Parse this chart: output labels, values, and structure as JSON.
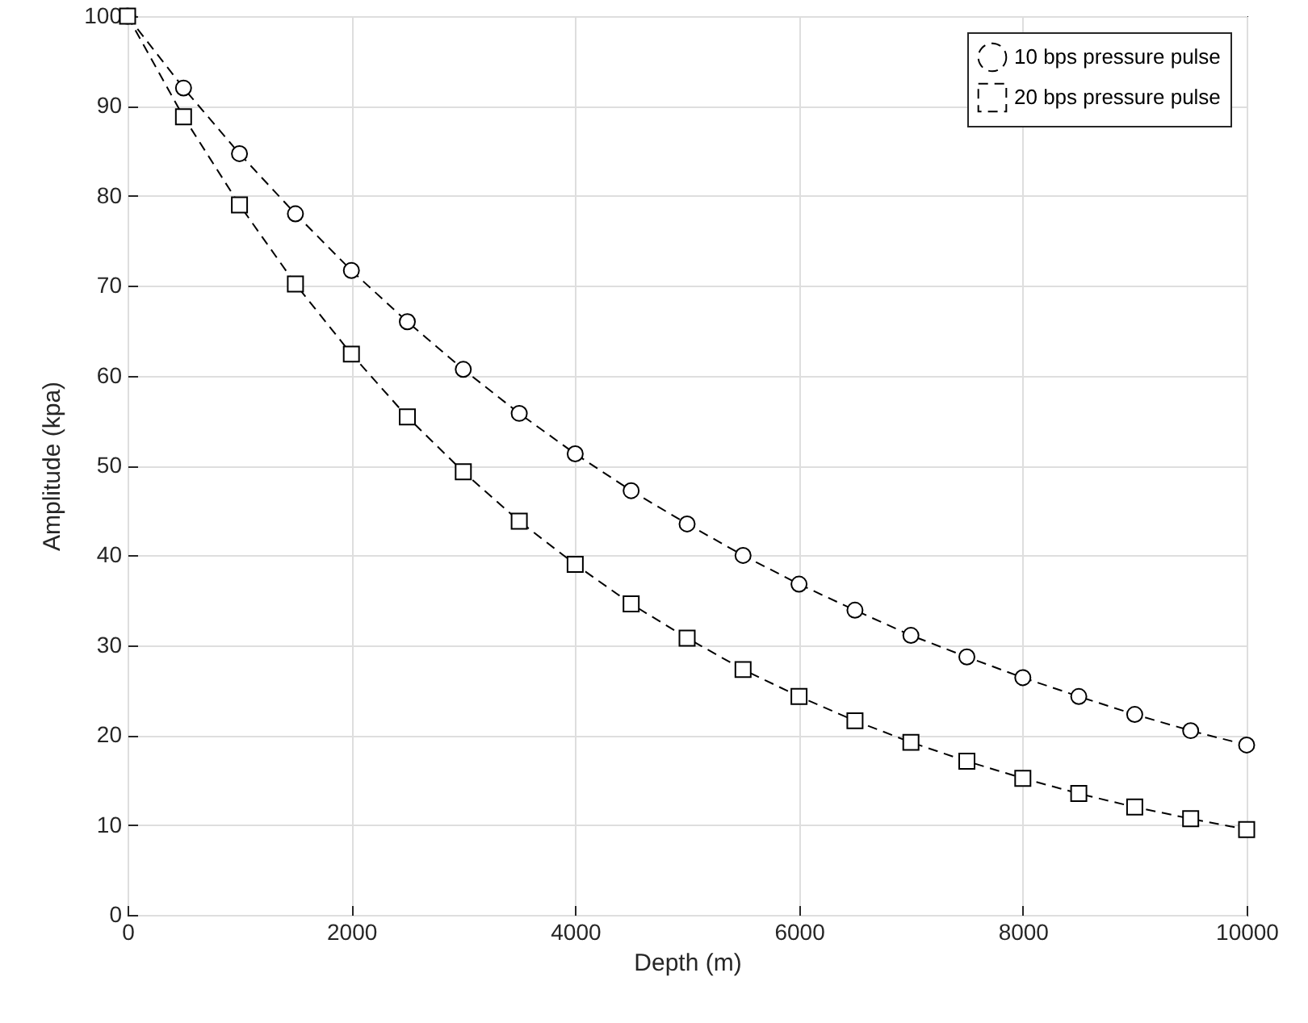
{
  "chart_data": {
    "type": "line",
    "xlabel": "Depth (m)",
    "ylabel": "Amplitude (kpa)",
    "x": [
      0,
      500,
      1000,
      1500,
      2000,
      2500,
      3000,
      3500,
      4000,
      4500,
      5000,
      5500,
      6000,
      6500,
      7000,
      7500,
      8000,
      8500,
      9000,
      9500,
      10000
    ],
    "series": [
      {
        "name": "10 bps pressure pulse",
        "color": "#000000",
        "marker": "circle",
        "values": [
          100,
          92,
          84.7,
          78,
          71.7,
          66,
          60.7,
          55.8,
          51.3,
          47.2,
          43.5,
          40,
          36.8,
          33.9,
          31.1,
          28.7,
          26.4,
          24.3,
          22.3,
          20.5,
          18.9
        ]
      },
      {
        "name": "20 bps pressure pulse",
        "color": "#000000",
        "marker": "square",
        "values": [
          100,
          88.8,
          79,
          70.2,
          62.4,
          55.4,
          49.3,
          43.8,
          39,
          34.6,
          30.8,
          27.3,
          24.3,
          21.6,
          19.2,
          17.1,
          15.2,
          13.5,
          12,
          10.7,
          9.5
        ]
      }
    ],
    "xlim": [
      0,
      10000
    ],
    "xticks": [
      0,
      2000,
      4000,
      6000,
      8000,
      10000
    ],
    "ylim": [
      0,
      100
    ],
    "yticks": [
      0,
      10,
      20,
      30,
      40,
      50,
      60,
      70,
      80,
      90,
      100
    ],
    "grid": true,
    "legend": "top right",
    "line_style": "dashed"
  }
}
